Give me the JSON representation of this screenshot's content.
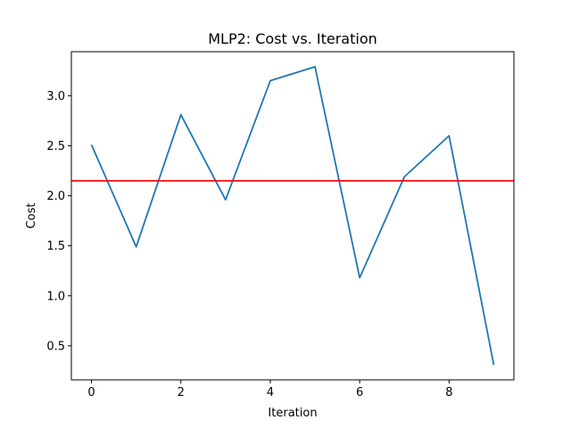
{
  "chart_data": {
    "type": "line",
    "title": "MLP2: Cost vs. Iteration",
    "xlabel": "Iteration",
    "ylabel": "Cost",
    "xlim": [
      -0.45,
      9.45
    ],
    "ylim": [
      0.16,
      3.44
    ],
    "xticks": [
      0,
      2,
      4,
      6,
      8
    ],
    "yticks": [
      0.5,
      1.0,
      1.5,
      2.0,
      2.5,
      3.0
    ],
    "grid": false,
    "series": [
      {
        "color": "#1f77b4",
        "x": [
          0,
          1,
          2,
          3,
          4,
          5,
          6,
          7,
          8,
          9
        ],
        "values": [
          2.51,
          1.49,
          2.81,
          1.96,
          3.15,
          3.29,
          1.18,
          2.19,
          2.6,
          0.31
        ]
      }
    ],
    "reference_line": {
      "orientation": "horizontal",
      "y": 2.15,
      "color": "#ff0000"
    }
  }
}
